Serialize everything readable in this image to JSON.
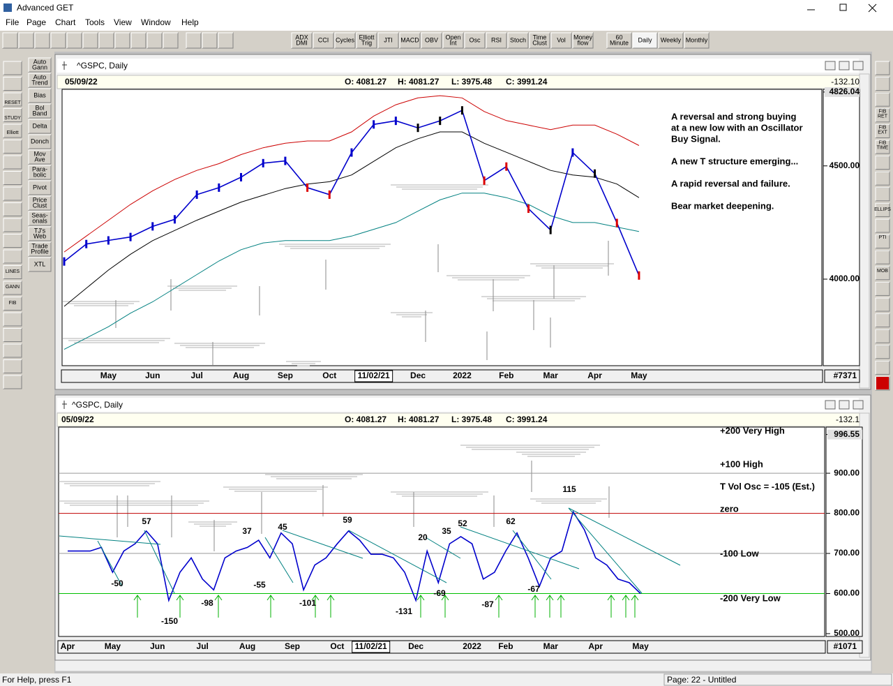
{
  "window": {
    "title": "Advanced GET"
  },
  "menu": [
    "File",
    "Page",
    "Chart",
    "Tools",
    "View",
    "Window",
    "Help"
  ],
  "study_buttons": [
    [
      "ADX",
      "DMI"
    ],
    [
      "CCI"
    ],
    [
      "Cycles"
    ],
    [
      "Elliott",
      "Trig"
    ],
    [
      "JTI"
    ],
    [
      "MACD"
    ],
    [
      "OBV"
    ],
    [
      "Open",
      "Int"
    ],
    [
      "Osc"
    ],
    [
      "RSI"
    ],
    [
      "Stoch"
    ],
    [
      "Time",
      "Clust"
    ],
    [
      "Vol"
    ],
    [
      "Money",
      "flow"
    ]
  ],
  "period_buttons": [
    [
      "60",
      "Minute"
    ],
    [
      "Daily"
    ],
    [
      "Weekly"
    ],
    [
      "Monthly"
    ]
  ],
  "left_tools": [
    "RESET",
    "STUDY",
    "Elliott",
    "LINES",
    "GANN",
    "FIB"
  ],
  "left_studies": [
    [
      "Auto",
      "Gann"
    ],
    [
      "Auto",
      "Trend"
    ],
    [
      "Bias"
    ],
    [
      "Bol",
      "Band"
    ],
    [
      "Delta"
    ],
    [
      "Donch"
    ],
    [
      "Mov",
      "Ave"
    ],
    [
      "Para-",
      "bolic"
    ],
    [
      "Pivot"
    ],
    [
      "Price",
      "Clust"
    ],
    [
      "Seas-",
      "onals"
    ],
    [
      "TJ's",
      "Web"
    ],
    [
      "Trade",
      "Profile"
    ],
    [
      "XTL"
    ]
  ],
  "right_tools": [
    [
      "FIB",
      "RET"
    ],
    [
      "FIB",
      "EXT"
    ],
    [
      "FIB",
      "TIME"
    ],
    [
      "ELLIPS"
    ],
    [
      "PTI"
    ],
    [
      "MOB"
    ]
  ],
  "status": {
    "help": "For Help, press F1",
    "page": "Page: 22 - Untitled"
  },
  "chart_data": [
    {
      "type": "line",
      "title": "^GSPC, Daily",
      "date": "05/09/22",
      "ohlc": [
        "O: 4081.27",
        "H: 4081.27",
        "L: 3975.48",
        "C: 3991.24"
      ],
      "change": "-132.10",
      "bar_count": "#7371",
      "categories": [
        null,
        null,
        "May",
        null,
        "Jun",
        null,
        "Jul",
        null,
        "Aug",
        null,
        "Sep",
        null,
        "Oct",
        null,
        "11/02/21",
        null,
        "Dec",
        null,
        "2022",
        null,
        "Feb",
        null,
        "Mar",
        null,
        "Apr",
        null,
        "May"
      ],
      "series": [
        {
          "color": "#0000cc",
          "values": [
            4078,
            4155,
            4171,
            4186,
            4233,
            4264,
            4373,
            4404,
            4450,
            4512,
            4522,
            4404,
            4373,
            4559,
            4683,
            4699,
            4668,
            4699,
            4745,
            4435,
            4497,
            4311,
            4217,
            4559,
            4466,
            4248,
            4016
          ],
          "point_colors": [
            "#0000cc",
            "#0000cc",
            "#0000cc",
            "#0000cc",
            "#0000cc",
            "#0000cc",
            "#0000cc",
            "#0000cc",
            "#0000cc",
            "#0000cc",
            "#0000cc",
            "#dd0000",
            "#dd0000",
            "#0000cc",
            "#0000cc",
            "#0000cc",
            "#000000",
            "#000000",
            "#000000",
            "#dd0000",
            "#dd0000",
            "#dd0000",
            "#000000",
            "#0000cc",
            "#000000",
            "#dd0000",
            "#dd0000"
          ]
        },
        {
          "color": "#cc0000",
          "values": [
            4120,
            4190,
            4260,
            4330,
            4390,
            4440,
            4480,
            4510,
            4550,
            4580,
            4600,
            4610,
            4610,
            4650,
            4720,
            4770,
            4800,
            4810,
            4800,
            4740,
            4700,
            4680,
            4660,
            4680,
            4680,
            4640,
            4590
          ]
        },
        {
          "color": "#000000",
          "values": [
            3880,
            3960,
            4040,
            4110,
            4170,
            4215,
            4260,
            4300,
            4340,
            4370,
            4400,
            4420,
            4430,
            4460,
            4520,
            4580,
            4620,
            4650,
            4650,
            4600,
            4560,
            4520,
            4480,
            4460,
            4450,
            4420,
            4360
          ]
        },
        {
          "color": "#008080",
          "values": [
            3690,
            3740,
            3790,
            3850,
            3900,
            3960,
            4020,
            4080,
            4130,
            4160,
            4170,
            4170,
            4170,
            4190,
            4220,
            4250,
            4300,
            4350,
            4380,
            4380,
            4360,
            4330,
            4280,
            4250,
            4250,
            4230,
            4210
          ]
        }
      ],
      "ylim": [
        3618,
        4838
      ],
      "yticks": [
        4826.04,
        {
          "value": 4500,
          "label": "4500.00"
        },
        {
          "value": 4000,
          "label": "4000.00"
        }
      ],
      "annotations": [
        "A reversal and strong buying",
        "at a new low with an Oscillator",
        "Buy Signal.",
        "A new T structure emerging...",
        "A rapid reversal and failure.",
        "Bear market deepening."
      ]
    },
    {
      "type": "line",
      "title": "^GSPC, Daily",
      "date": "05/09/22",
      "ohlc": [
        "O: 4081.27",
        "H: 4081.27",
        "L: 3975.48",
        "C: 3991.24"
      ],
      "change": "-132.1",
      "bar_count": "#1071",
      "categories": [
        "Apr",
        null,
        null,
        null,
        "May",
        null,
        null,
        null,
        "Jun",
        null,
        null,
        null,
        "Jul",
        null,
        null,
        null,
        "Aug",
        null,
        null,
        null,
        "Sep",
        null,
        null,
        null,
        "Oct",
        null,
        null,
        "11/02/21",
        null,
        null,
        null,
        "Dec",
        null,
        null,
        null,
        null,
        "2022",
        null,
        null,
        "Feb",
        null,
        null,
        null,
        "Mar",
        null,
        null,
        null,
        "Apr",
        null,
        null,
        null,
        "May"
      ],
      "series": [
        {
          "color": "#0000cc",
          "values": [
            706,
            706,
            706,
            715,
            653,
            706,
            724,
            756,
            724,
            583,
            653,
            689,
            636,
            609,
            689,
            706,
            715,
            733,
            689,
            751,
            724,
            609,
            671,
            689,
            724,
            756,
            733,
            698,
            698,
            689,
            653,
            583,
            706,
            627,
            724,
            742,
            724,
            636,
            653,
            706,
            751,
            689,
            618,
            689,
            706,
            804,
            759,
            689,
            671,
            636,
            627,
            600
          ]
        }
      ],
      "ylim": [
        493,
        1015
      ],
      "yticks": [
        996.55,
        {
          "value": 900,
          "label": "900.00"
        },
        {
          "value": 800,
          "label": "800.00"
        },
        {
          "value": 700,
          "label": "700.00"
        },
        {
          "value": 600,
          "label": "600.00"
        },
        {
          "value": 500,
          "label": "500.00"
        }
      ],
      "hlines": [
        {
          "value": 900,
          "color": "#999999"
        },
        {
          "value": 800,
          "color": "#c00000"
        },
        {
          "value": 700,
          "color": "#999999"
        },
        {
          "value": 600,
          "color": "#00c000"
        }
      ],
      "level_labels": [
        "+200 Very High",
        "+100 High",
        "T Vol Osc = -105 (Est.)",
        "zero",
        "-100 Low",
        "-200 Very Low"
      ],
      "peak_labels": [
        -50,
        57,
        -150,
        -98,
        37,
        -55,
        45,
        -101,
        59,
        -131,
        20,
        -69,
        35,
        52,
        -87,
        62,
        -67,
        115
      ]
    }
  ]
}
